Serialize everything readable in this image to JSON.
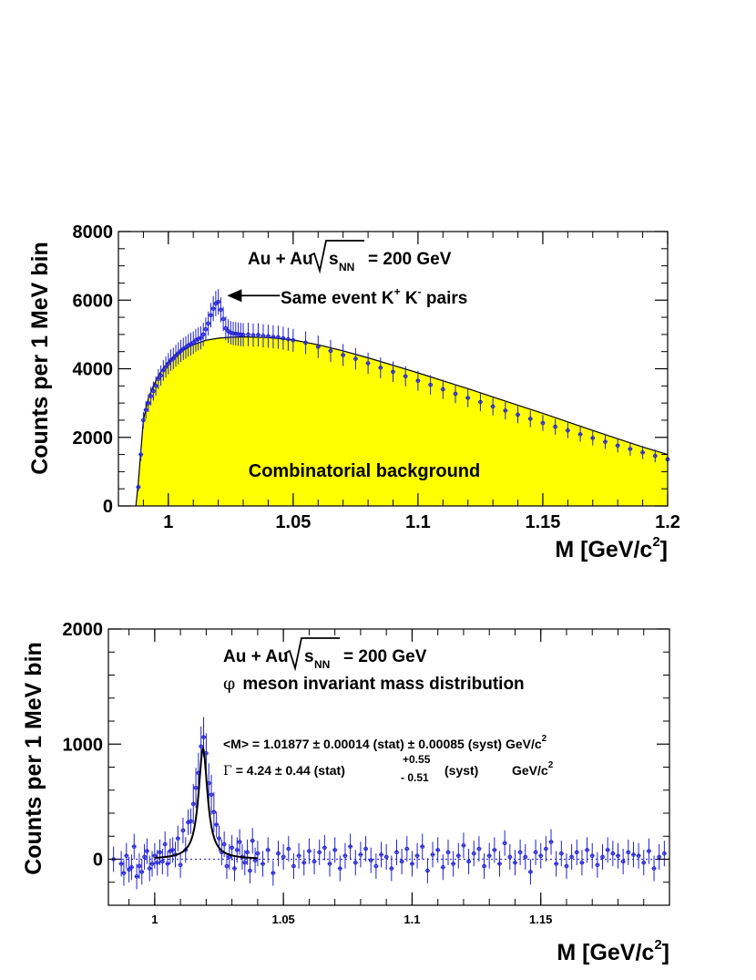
{
  "colors": {
    "data_points": "#1f1fd6",
    "background_fill": "#ffff00",
    "fit_line": "#000000",
    "axes": "#000000"
  },
  "chart_data": [
    {
      "type": "area",
      "panel": "top",
      "xlabel_main": "M [GeV/c",
      "xlabel_sup": "2",
      "xlabel_end": "]",
      "ylabel": "Counts per 1 MeV bin",
      "xlim": [
        0.98,
        1.2
      ],
      "ylim": [
        0,
        8000
      ],
      "x_ticks": [
        "1",
        "1.05",
        "1.1",
        "1.15",
        "1.2"
      ],
      "y_ticks": [
        "0",
        "2000",
        "4000",
        "6000",
        "8000"
      ],
      "system_text": "Au + Au",
      "sqrt_symbol": "√",
      "s_text": "s",
      "nn_text": "NN",
      "energy_text": "= 200 GeV",
      "annotation_main": "Same event K",
      "annotation_k1_sup": "+",
      "annotation_mid": " K",
      "annotation_k2_sup": "-",
      "annotation_end": " pairs",
      "arrow_target": [
        1.021,
        6000
      ],
      "background_label": "Combinatorial background",
      "series": [
        {
          "kind": "background",
          "x": [
            0.987,
            0.988,
            0.99,
            0.992,
            0.994,
            0.996,
            0.998,
            1.0,
            1.003,
            1.006,
            1.01,
            1.015,
            1.02,
            1.025,
            1.03,
            1.04,
            1.05,
            1.06,
            1.07,
            1.08,
            1.09,
            1.1,
            1.11,
            1.12,
            1.13,
            1.14,
            1.15,
            1.16,
            1.17,
            1.18,
            1.19,
            1.2
          ],
          "values": [
            0,
            700,
            2500,
            3150,
            3500,
            3800,
            4020,
            4180,
            4400,
            4560,
            4700,
            4830,
            4890,
            4920,
            4930,
            4910,
            4840,
            4700,
            4520,
            4320,
            4100,
            3880,
            3650,
            3420,
            3180,
            2940,
            2700,
            2450,
            2200,
            1960,
            1720,
            1500
          ]
        },
        {
          "kind": "same-event data",
          "x": [
            0.988,
            0.989,
            0.99,
            0.991,
            0.992,
            0.993,
            0.994,
            0.995,
            0.996,
            0.997,
            0.998,
            0.999,
            1.0,
            1.001,
            1.002,
            1.003,
            1.004,
            1.005,
            1.006,
            1.007,
            1.008,
            1.009,
            1.01,
            1.011,
            1.012,
            1.013,
            1.014,
            1.015,
            1.016,
            1.017,
            1.018,
            1.019,
            1.02,
            1.021,
            1.022,
            1.023,
            1.024,
            1.025,
            1.026,
            1.027,
            1.028,
            1.029,
            1.03,
            1.032,
            1.034,
            1.036,
            1.038,
            1.04,
            1.042,
            1.044,
            1.046,
            1.048,
            1.05,
            1.055,
            1.06,
            1.065,
            1.07,
            1.075,
            1.08,
            1.085,
            1.09,
            1.095,
            1.1,
            1.105,
            1.11,
            1.115,
            1.12,
            1.125,
            1.13,
            1.135,
            1.14,
            1.145,
            1.15,
            1.155,
            1.16,
            1.165,
            1.17,
            1.175,
            1.18,
            1.185,
            1.19,
            1.195,
            1.2
          ],
          "values": [
            550,
            1500,
            2500,
            2800,
            3000,
            3200,
            3350,
            3500,
            3700,
            3800,
            3950,
            4050,
            4150,
            4250,
            4300,
            4380,
            4450,
            4520,
            4580,
            4620,
            4680,
            4720,
            4760,
            4830,
            4870,
            4900,
            5000,
            5150,
            5320,
            5560,
            5750,
            5900,
            5950,
            5720,
            5450,
            5180,
            5100,
            5050,
            5030,
            5020,
            5010,
            5000,
            4990,
            5000,
            4980,
            4990,
            4960,
            4950,
            4930,
            4920,
            4890,
            4860,
            4830,
            4760,
            4640,
            4520,
            4400,
            4290,
            4160,
            4030,
            3910,
            3780,
            3650,
            3530,
            3400,
            3270,
            3150,
            3030,
            2900,
            2780,
            2660,
            2540,
            2420,
            2310,
            2200,
            2090,
            1980,
            1870,
            1760,
            1660,
            1560,
            1460,
            1360
          ]
        }
      ]
    },
    {
      "type": "scatter",
      "panel": "bottom",
      "xlabel_main": "M [GeV/c",
      "xlabel_sup": "2",
      "xlabel_end": "]",
      "ylabel": "Counts per 1 MeV bin",
      "xlim": [
        0.982,
        1.2
      ],
      "ylim": [
        -400,
        2000
      ],
      "x_ticks": [
        "1",
        "1.05",
        "1.1",
        "1.15"
      ],
      "y_ticks": [
        "0",
        "1000",
        "2000"
      ],
      "system_text": "Au + Au",
      "sqrt_symbol": "√",
      "s_text": "s",
      "nn_text": "NN",
      "energy_text": "= 200 GeV",
      "subtitle_symbol": "φ",
      "subtitle": "meson invariant mass distribution",
      "mass_result": "<M> = 1.01877 ± 0.00014 (stat) ± 0.00085 (syst)  GeV/c",
      "mass_unit_sup": "2",
      "width_symbol": "Γ",
      "width_result": "= 4.24  ± 0.44 (stat)",
      "width_syst_up": "+0.55",
      "width_syst_down": "- 0.51",
      "width_syst_label": "(syst)",
      "width_unit": "GeV/c",
      "width_unit_sup": "2",
      "fit": {
        "function": "Breit-Wigner",
        "mass": 1.01877,
        "width_MeV": 4.24,
        "peak": 960,
        "x_range": [
          1.0,
          1.04
        ]
      },
      "series": [
        {
          "kind": "subtracted data",
          "x": [
            0.984,
            0.987,
            0.988,
            0.989,
            0.99,
            0.991,
            0.992,
            0.993,
            0.994,
            0.995,
            0.996,
            0.997,
            0.998,
            0.999,
            1.0,
            1.001,
            1.002,
            1.003,
            1.004,
            1.005,
            1.006,
            1.007,
            1.008,
            1.009,
            1.01,
            1.011,
            1.012,
            1.013,
            1.014,
            1.015,
            1.016,
            1.017,
            1.018,
            1.019,
            1.02,
            1.021,
            1.022,
            1.023,
            1.024,
            1.025,
            1.026,
            1.027,
            1.028,
            1.029,
            1.03,
            1.031,
            1.032,
            1.033,
            1.034,
            1.035,
            1.036,
            1.037,
            1.038,
            1.039,
            1.04,
            1.042,
            1.044,
            1.046,
            1.048,
            1.05,
            1.052,
            1.054,
            1.056,
            1.058,
            1.06,
            1.062,
            1.064,
            1.066,
            1.068,
            1.07,
            1.072,
            1.074,
            1.076,
            1.078,
            1.08,
            1.082,
            1.084,
            1.086,
            1.088,
            1.09,
            1.092,
            1.094,
            1.096,
            1.098,
            1.1,
            1.102,
            1.104,
            1.106,
            1.108,
            1.11,
            1.112,
            1.114,
            1.116,
            1.118,
            1.12,
            1.122,
            1.124,
            1.126,
            1.128,
            1.13,
            1.132,
            1.134,
            1.136,
            1.138,
            1.14,
            1.142,
            1.144,
            1.146,
            1.148,
            1.15,
            1.152,
            1.154,
            1.156,
            1.158,
            1.16,
            1.162,
            1.164,
            1.166,
            1.168,
            1.17,
            1.172,
            1.174,
            1.176,
            1.178,
            1.18,
            1.182,
            1.184,
            1.186,
            1.188,
            1.19,
            1.192,
            1.194,
            1.196,
            1.198
          ],
          "values": [
            0,
            -40,
            -120,
            30,
            -90,
            -70,
            110,
            -150,
            -60,
            -110,
            20,
            70,
            -80,
            -40,
            30,
            -30,
            60,
            -20,
            130,
            -40,
            70,
            80,
            40,
            180,
            -50,
            250,
            80,
            320,
            330,
            480,
            620,
            750,
            980,
            1060,
            920,
            660,
            560,
            410,
            300,
            180,
            60,
            130,
            -60,
            20,
            100,
            -80,
            80,
            150,
            20,
            -30,
            60,
            -100,
            160,
            -10,
            50,
            -40,
            80,
            -120,
            50,
            20,
            90,
            -60,
            30,
            -30,
            70,
            -20,
            60,
            100,
            -40,
            80,
            -80,
            30,
            110,
            -30,
            40,
            90,
            -10,
            -60,
            40,
            20,
            -80,
            60,
            -20,
            90,
            -40,
            30,
            110,
            -100,
            40,
            80,
            -70,
            60,
            -40,
            30,
            120,
            -20,
            50,
            90,
            -60,
            30,
            80,
            -40,
            140,
            20,
            -30,
            60,
            20,
            -110,
            60,
            30,
            90,
            150,
            -40,
            50,
            -60,
            20,
            60,
            -30,
            80,
            30,
            -50,
            20,
            80,
            50,
            30,
            -20,
            60,
            40,
            30,
            -30,
            70,
            -80,
            20,
            50
          ]
        }
      ]
    }
  ]
}
